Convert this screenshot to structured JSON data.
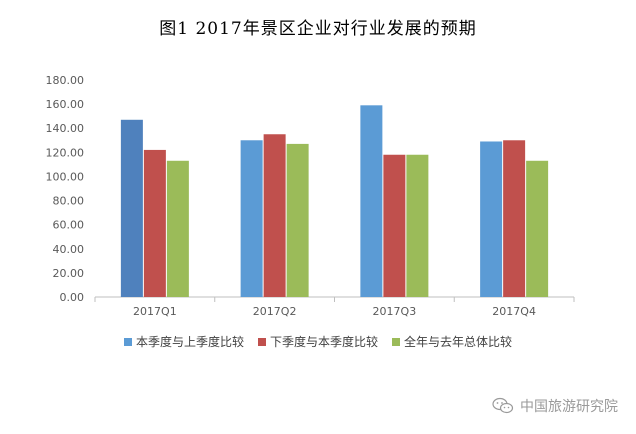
{
  "chart_data": {
    "type": "bar",
    "title": "图1 2017年景区企业对行业发展的预期",
    "categories": [
      "2017Q1",
      "2017Q2",
      "2017Q3",
      "2017Q4"
    ],
    "series": [
      {
        "name": "本季度与上季度比较",
        "values": [
          147,
          130,
          159,
          129
        ],
        "color": "#5b9bd5"
      },
      {
        "name": "下季度与本季度比较",
        "values": [
          122,
          135,
          118,
          130
        ],
        "color": "#c0504d"
      },
      {
        "name": "全年与去年总体比较",
        "values": [
          113,
          127,
          118,
          113
        ],
        "color": "#9bbb59"
      }
    ],
    "highlight_color": "#4f81bd",
    "ylim": [
      0,
      180
    ],
    "yticks": [
      "0.00",
      "20.00",
      "40.00",
      "60.00",
      "80.00",
      "100.00",
      "120.00",
      "140.00",
      "160.00",
      "180.00"
    ],
    "grid": false,
    "legend_position": "bottom"
  },
  "watermark": {
    "text": "中国旅游研究院",
    "icon": "wechat-icon"
  }
}
